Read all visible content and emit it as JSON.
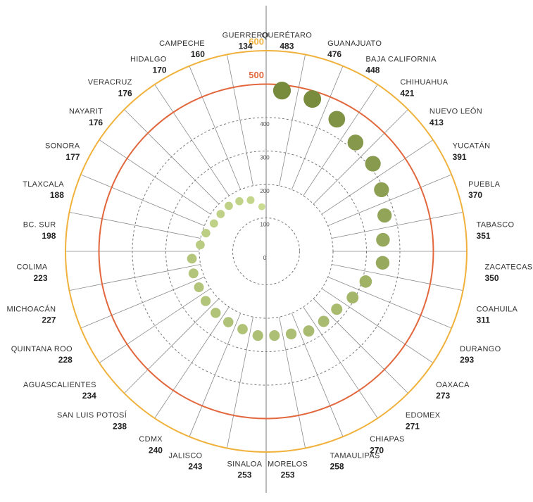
{
  "chart_data": {
    "type": "radial-dot",
    "categories": [
      "QUERÉTARO",
      "GUANAJUATO",
      "BAJA CALIFORNIA",
      "CHIHUAHUA",
      "NUEVO LEÓN",
      "YUCATÁN",
      "PUEBLA",
      "TABASCO",
      "ZACATECAS",
      "COAHUILA",
      "DURANGO",
      "OAXACA",
      "EDOMEX",
      "CHIAPAS",
      "TAMAULIPAS",
      "MORELOS",
      "SINALOA",
      "JALISCO",
      "CDMX",
      "SAN LUIS POTOSÍ",
      "AGUASCALIENTES",
      "QUINTANA ROO",
      "MICHOACÁN",
      "COLIMA",
      "BC. SUR",
      "TLAXCALA",
      "SONORA",
      "NAYARIT",
      "VERACRUZ",
      "HIDALGO",
      "CAMPECHE",
      "GUERRERO"
    ],
    "values": [
      483,
      476,
      448,
      421,
      413,
      391,
      370,
      351,
      350,
      311,
      293,
      273,
      271,
      270,
      258,
      253,
      253,
      243,
      240,
      238,
      234,
      228,
      227,
      223,
      198,
      188,
      177,
      176,
      176,
      170,
      160,
      134
    ],
    "rlim": [
      0,
      600
    ],
    "rticks": [
      0,
      100,
      200,
      300,
      400,
      500,
      600
    ],
    "ring_colors": {
      "500": "#e2673d",
      "600": "#f0b23c"
    },
    "color_scale": [
      "#c9dc92",
      "#76883a"
    ]
  }
}
